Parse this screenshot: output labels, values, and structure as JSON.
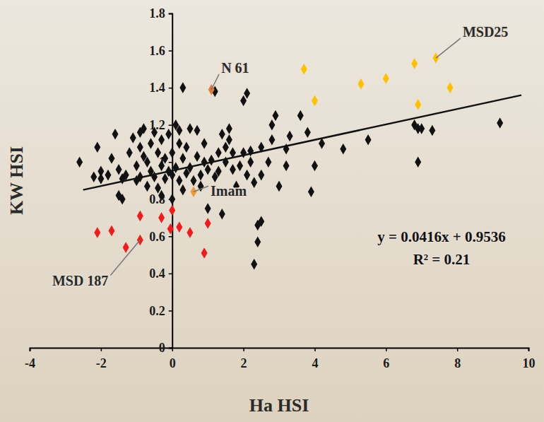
{
  "chart_data": {
    "type": "scatter",
    "x_label": "Ha HSI",
    "y_label": "KW HSI",
    "xlim": [
      -4,
      10
    ],
    "xticks": [
      -4,
      -2,
      0,
      2,
      4,
      6,
      8,
      10
    ],
    "ylim": [
      0,
      1.8
    ],
    "yticks": [
      0,
      0.2,
      0.4,
      0.6,
      0.8,
      1,
      1.2,
      1.4,
      1.6,
      1.8
    ],
    "grid": false,
    "series": [
      {
        "type": "scatter",
        "color": "#111111",
        "marker": "diamond",
        "x": [
          -2.6,
          -2.2,
          -2.1,
          -2.0,
          -2.0,
          -1.8,
          -1.7,
          -1.6,
          -1.5,
          -1.5,
          -1.4,
          -1.4,
          -1.3,
          -1.2,
          -1.1,
          -1.0,
          -1.0,
          -0.9,
          -0.9,
          -0.9,
          -0.8,
          -0.8,
          -0.7,
          -0.7,
          -0.6,
          -0.6,
          -0.5,
          -0.5,
          -0.4,
          -0.4,
          -0.3,
          -0.3,
          -0.3,
          -0.2,
          -0.2,
          -0.1,
          -0.1,
          0.0,
          0.0,
          0.0,
          0.1,
          0.1,
          0.2,
          0.2,
          0.2,
          0.3,
          0.3,
          0.3,
          0.4,
          0.4,
          0.5,
          0.5,
          0.6,
          0.7,
          0.7,
          0.8,
          0.8,
          0.9,
          0.9,
          1.0,
          1.0,
          1.1,
          1.2,
          1.2,
          1.3,
          1.3,
          1.4,
          1.4,
          1.5,
          1.5,
          1.6,
          1.6,
          1.7,
          1.7,
          1.8,
          1.9,
          2.0,
          2.0,
          2.1,
          2.1,
          2.2,
          2.2,
          2.3,
          2.3,
          2.4,
          2.4,
          2.5,
          2.5,
          2.5,
          2.7,
          2.8,
          2.8,
          2.9,
          3.0,
          3.2,
          3.2,
          3.3,
          3.6,
          3.8,
          3.9,
          4.0,
          4.2,
          4.8,
          5.5,
          6.8,
          6.9,
          6.9,
          7.0,
          7.3,
          9.2
        ],
        "values": [
          1.0,
          0.92,
          1.08,
          0.95,
          0.91,
          0.93,
          1.02,
          1.15,
          0.96,
          0.82,
          0.91,
          0.8,
          0.93,
          1.05,
          1.13,
          0.98,
          0.9,
          1.08,
          0.92,
          1.16,
          1.18,
          1.03,
          1.0,
          0.87,
          1.1,
          0.95,
          0.92,
          1.16,
          1.05,
          0.86,
          0.98,
          1.12,
          0.82,
          0.91,
          1.02,
          0.95,
          1.15,
          1.05,
          0.93,
          0.8,
          1.2,
          0.97,
          1.1,
          0.9,
          1.17,
          1.4,
          1.02,
          0.85,
          0.94,
          1.08,
          1.18,
          0.97,
          0.9,
          1.17,
          1.03,
          0.93,
          0.87,
          1.1,
          1.0,
          0.75,
          0.96,
          1.01,
          1.38,
          0.92,
          1.05,
          0.95,
          1.15,
          0.72,
          1.08,
          1.0,
          1.18,
          1.12,
          1.05,
          0.96,
          0.87,
          0.98,
          1.33,
          1.05,
          1.37,
          0.93,
          1.06,
          1.0,
          0.45,
          0.89,
          0.66,
          0.57,
          0.68,
          1.08,
          0.93,
          1.0,
          1.2,
          1.12,
          1.25,
          0.87,
          1.07,
          0.98,
          1.14,
          1.25,
          1.16,
          0.84,
          0.98,
          1.1,
          1.07,
          1.12,
          1.2,
          1.0,
          1.18,
          1.18,
          1.17,
          1.21
        ]
      },
      {
        "type": "scatter",
        "color": "#ee1c1c",
        "marker": "diamond",
        "x": [
          -2.1,
          -1.7,
          -1.3,
          -0.9,
          -0.9,
          -0.3,
          0.0,
          -0.05,
          0.2,
          0.5,
          1.0,
          0.9
        ],
        "values": [
          0.62,
          0.63,
          0.54,
          0.58,
          0.71,
          0.7,
          0.74,
          0.64,
          0.65,
          0.62,
          0.67,
          0.51
        ]
      },
      {
        "type": "scatter",
        "color": "#ffc000",
        "marker": "diamond",
        "x": [
          3.7,
          4.0,
          5.3,
          6.0,
          6.8,
          6.9,
          7.4,
          7.8
        ],
        "values": [
          1.5,
          1.33,
          1.42,
          1.45,
          1.53,
          1.31,
          1.56,
          1.4
        ]
      },
      {
        "type": "scatter",
        "color": "#e07b39",
        "marker": "diamond",
        "x": [
          1.1
        ],
        "values": [
          1.39
        ]
      },
      {
        "type": "scatter",
        "color": "#ec9a3c",
        "marker": "diamond",
        "x": [
          0.6
        ],
        "values": [
          0.84
        ]
      },
      {
        "type": "line",
        "color": "#111111",
        "line_style": "solid",
        "x": [
          -2.5,
          9.8
        ],
        "values": [
          0.85,
          1.36
        ]
      }
    ],
    "annotations": [
      {
        "text": "MSD25",
        "x": 7.4,
        "y": 1.56
      },
      {
        "text": "N 61",
        "x": 1.1,
        "y": 1.39
      },
      {
        "text": "Imam",
        "x": 0.6,
        "y": 0.84
      },
      {
        "text": "MSD 187",
        "x": -0.9,
        "y": 0.58
      },
      {
        "text": "y = 0.0416x + 0.9536"
      },
      {
        "text": "R² = 0.21"
      }
    ]
  }
}
